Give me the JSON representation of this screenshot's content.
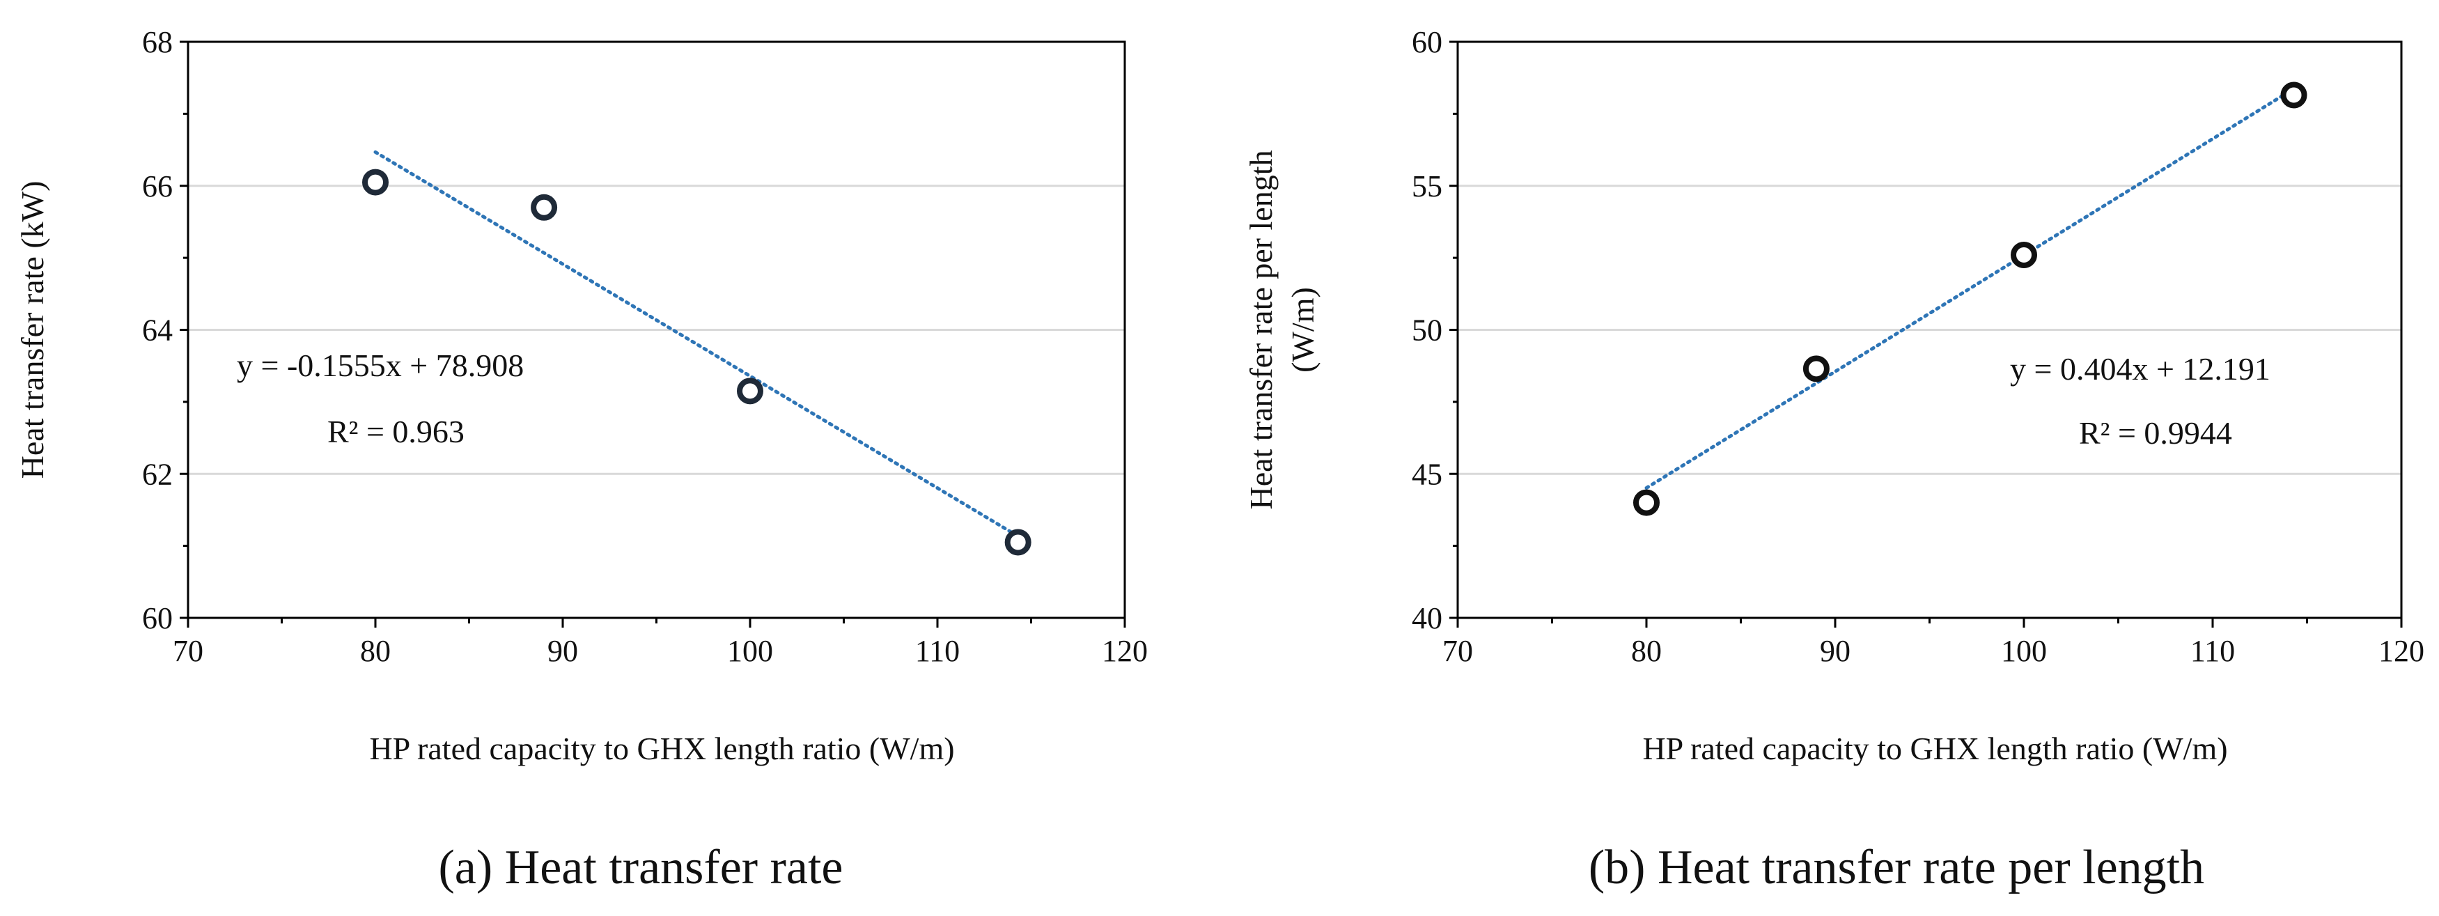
{
  "chart_data": [
    {
      "type": "scatter",
      "caption": "(a) Heat transfer rate",
      "xlabel": "HP rated capacity  to GHX length ratio  (W/m)",
      "ylabel": "Heat transfer  rate (kW)",
      "ylabel_lines": [],
      "xlim": [
        70,
        120
      ],
      "ylim": [
        60,
        68
      ],
      "xticks": [
        "70",
        "80",
        "90",
        "100",
        "110",
        "120"
      ],
      "yticks": [
        "60",
        "62",
        "64",
        "66",
        "68"
      ],
      "grid": "horizontal",
      "points": [
        {
          "x": 80,
          "y": 66.05
        },
        {
          "x": 89,
          "y": 65.7
        },
        {
          "x": 100,
          "y": 63.15
        },
        {
          "x": 114.3,
          "y": 61.05
        }
      ],
      "trendline": {
        "slope": -0.1555,
        "intercept": 78.908,
        "x_range": [
          80,
          114.3
        ],
        "color": "#2e75b6"
      },
      "equation": "y = -0.1555x + 78.908",
      "r2": "R² = 0.963",
      "marker_color": "#1f2a38"
    },
    {
      "type": "scatter",
      "caption": "(b) Heat transfer rate per length",
      "xlabel": "HP rated capacity  to GHX length ratio  (W/m)",
      "ylabel": "",
      "ylabel_lines": [
        "Heat transfer  rate per length",
        "(W/m)"
      ],
      "xlim": [
        70,
        120
      ],
      "ylim": [
        40,
        60
      ],
      "xticks": [
        "70",
        "80",
        "90",
        "100",
        "110",
        "120"
      ],
      "yticks": [
        "40",
        "45",
        "50",
        "55",
        "60"
      ],
      "grid": "horizontal",
      "points": [
        {
          "x": 80,
          "y": 44.0
        },
        {
          "x": 89,
          "y": 48.65
        },
        {
          "x": 100,
          "y": 52.6
        },
        {
          "x": 114.3,
          "y": 58.15
        }
      ],
      "trendline": {
        "slope": 0.404,
        "intercept": 12.191,
        "x_range": [
          80,
          114.3
        ],
        "color": "#2e75b6"
      },
      "equation": "y = 0.404x + 12.191",
      "r2": "R² = 0.9944",
      "marker_color": "#111111"
    }
  ]
}
